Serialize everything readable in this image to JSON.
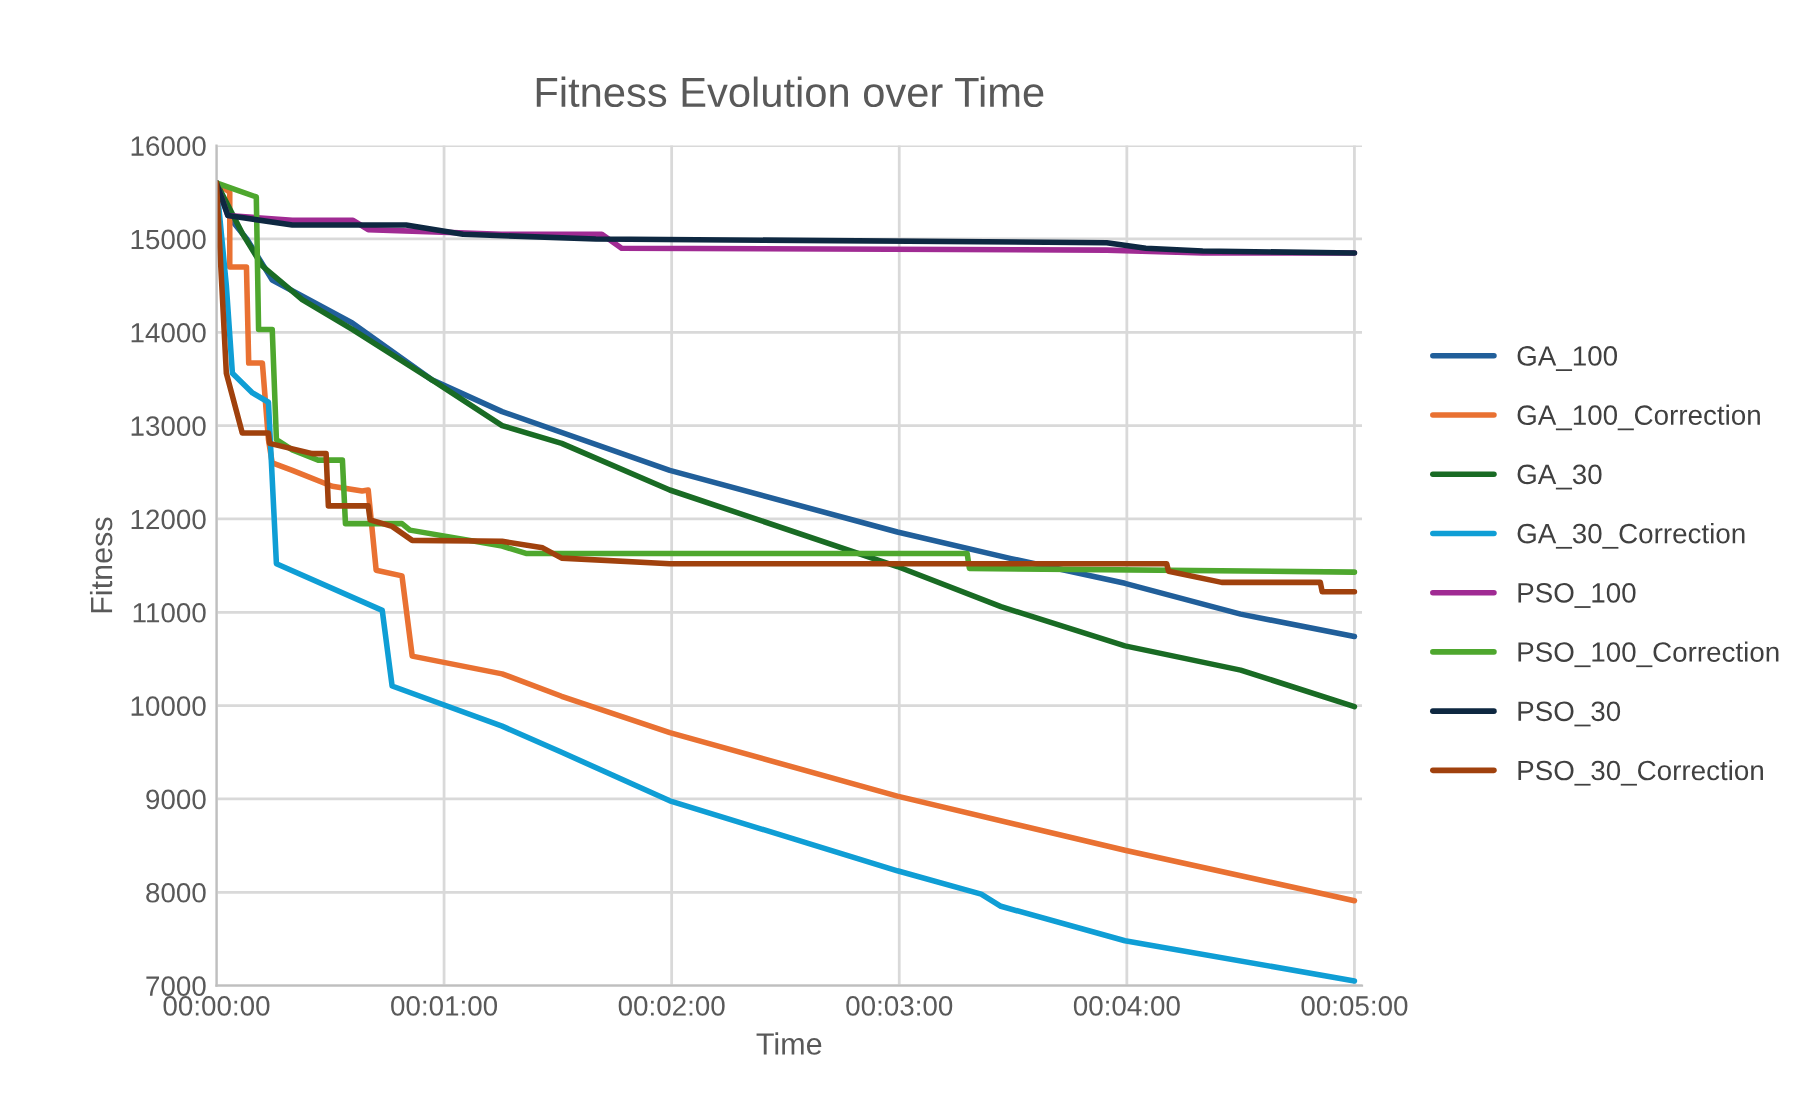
{
  "chart_data": {
    "type": "line",
    "title": "Fitness Evolution over Time",
    "xlabel": "Time",
    "ylabel": "Fitness",
    "xlim": [
      0,
      302
    ],
    "xticks": [
      {
        "value": 0,
        "label": "00:00:00"
      },
      {
        "value": 60,
        "label": "00:01:00"
      },
      {
        "value": 120,
        "label": "00:02:00"
      },
      {
        "value": 180,
        "label": "00:03:00"
      },
      {
        "value": 240,
        "label": "00:04:00"
      },
      {
        "value": 300,
        "label": "00:05:00"
      }
    ],
    "ylim": [
      7000,
      16000
    ],
    "yticks": [
      7000,
      8000,
      9000,
      10000,
      11000,
      12000,
      13000,
      14000,
      15000,
      16000
    ],
    "grid": true,
    "legend": "right",
    "marker": "none",
    "line_style": "solid",
    "series": [
      {
        "name": "GA_100",
        "color": "#215f9a",
        "x": [
          0,
          4,
          8,
          14.7,
          35.8,
          56.8,
          75.3,
          119.5,
          179.5,
          209.5,
          239.5,
          270,
          300
        ],
        "values": [
          15600,
          15200,
          15000,
          14560,
          14100,
          13490,
          13150,
          12520,
          11860,
          11575,
          11310,
          10980,
          10740
        ]
      },
      {
        "name": "GA_100_Correction",
        "color": "#e97132",
        "x": [
          0,
          3.5,
          3.5,
          7.9,
          8.5,
          12.1,
          13.7,
          14.7,
          20,
          30.5,
          38.4,
          40,
          42.1,
          48.9,
          51.6,
          75.3,
          91,
          119.5,
          179.5,
          239.5,
          300
        ],
        "values": [
          15600,
          15500,
          14700,
          14700,
          13670,
          13670,
          12850,
          12600,
          12520,
          12350,
          12300,
          12310,
          11450,
          11390,
          10530,
          10340,
          10100,
          9710,
          9030,
          8450,
          7910
        ]
      },
      {
        "name": "GA_30",
        "color": "#196b24",
        "x": [
          0,
          6.8,
          12.1,
          22.6,
          35.8,
          56.8,
          75.3,
          91,
          119.5,
          179.5,
          206.8,
          239.5,
          270,
          300
        ],
        "values": [
          15600,
          15060,
          14710,
          14350,
          14030,
          13490,
          13000,
          12810,
          12310,
          11490,
          11060,
          10640,
          10380,
          9990
        ]
      },
      {
        "name": "GA_30_Correction",
        "color": "#0f9ed5",
        "x": [
          0,
          2.6,
          4.2,
          9.5,
          13.7,
          15.8,
          43.7,
          46.3,
          75.3,
          91,
          119.5,
          179.5,
          201.6,
          206.8,
          239.5,
          300
        ],
        "values": [
          15600,
          14500,
          13560,
          13350,
          13250,
          11520,
          11020,
          10210,
          9780,
          9500,
          8980,
          8230,
          7980,
          7850,
          7480,
          7050
        ]
      },
      {
        "name": "PSO_100",
        "color": "#a02b93",
        "x": [
          0,
          3,
          20,
          36,
          40,
          75,
          101.6,
          106.8,
          234.7,
          260,
          300
        ],
        "values": [
          15600,
          15250,
          15200,
          15200,
          15100,
          15050,
          15050,
          14900,
          14880,
          14850,
          14850
        ]
      },
      {
        "name": "PSO_100_Correction",
        "color": "#4ea72e",
        "x": [
          0,
          10.5,
          11.1,
          14.7,
          15.8,
          20,
          26.8,
          33.2,
          34,
          48.9,
          51,
          75.3,
          81.6,
          197.9,
          198.5,
          300
        ],
        "values": [
          15600,
          15450,
          14030,
          14030,
          12850,
          12740,
          12630,
          12630,
          11950,
          11950,
          11880,
          11710,
          11630,
          11630,
          11470,
          11430
        ]
      },
      {
        "name": "PSO_30",
        "color": "#0e2841",
        "x": [
          0,
          3,
          20,
          50,
          65,
          100,
          234.7,
          245,
          260,
          300
        ],
        "values": [
          15600,
          15250,
          15150,
          15150,
          15050,
          15000,
          14960,
          14900,
          14870,
          14850
        ]
      },
      {
        "name": "PSO_30_Correction",
        "color": "#a0410d",
        "x": [
          0,
          2.6,
          6.8,
          13.7,
          14,
          25.3,
          28.9,
          29.5,
          40,
          40.5,
          46.3,
          51.6,
          75.3,
          86,
          91,
          119.5,
          250.5,
          251,
          265,
          291,
          291.5,
          300
        ],
        "values": [
          15600,
          13560,
          12920,
          12920,
          12810,
          12700,
          12700,
          12140,
          12140,
          11990,
          11920,
          11770,
          11760,
          11690,
          11580,
          11520,
          11520,
          11440,
          11320,
          11320,
          11220,
          11220
        ]
      }
    ]
  }
}
